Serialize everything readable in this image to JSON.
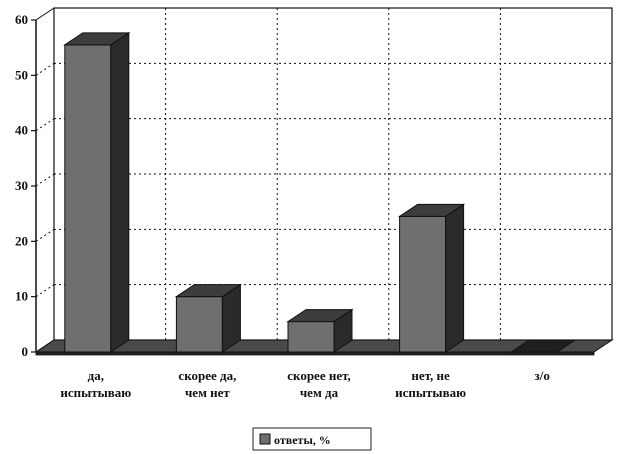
{
  "chart_data": {
    "type": "bar",
    "style": "3d",
    "categories": [
      [
        "да,",
        "испытываю"
      ],
      [
        "скорее да,",
        "чем нет"
      ],
      [
        "скорее нет,",
        "чем да"
      ],
      [
        "нет, не",
        "испытываю"
      ],
      [
        "з/о"
      ]
    ],
    "series": [
      {
        "name": "ответы, %",
        "values": [
          55.5,
          10,
          5.5,
          24.5,
          0
        ]
      }
    ],
    "yticks": [
      0,
      10,
      20,
      30,
      40,
      50,
      60
    ],
    "ylim": [
      0,
      60
    ],
    "grid": true,
    "legend": "bottom-center",
    "colors": {
      "bar_front": "#6f6f6f",
      "bar_side": "#2a2a2a",
      "bar_top": "#3d3d3d",
      "floor": "#4a4a4a",
      "axis": "#111111",
      "grid": "#111111"
    }
  }
}
